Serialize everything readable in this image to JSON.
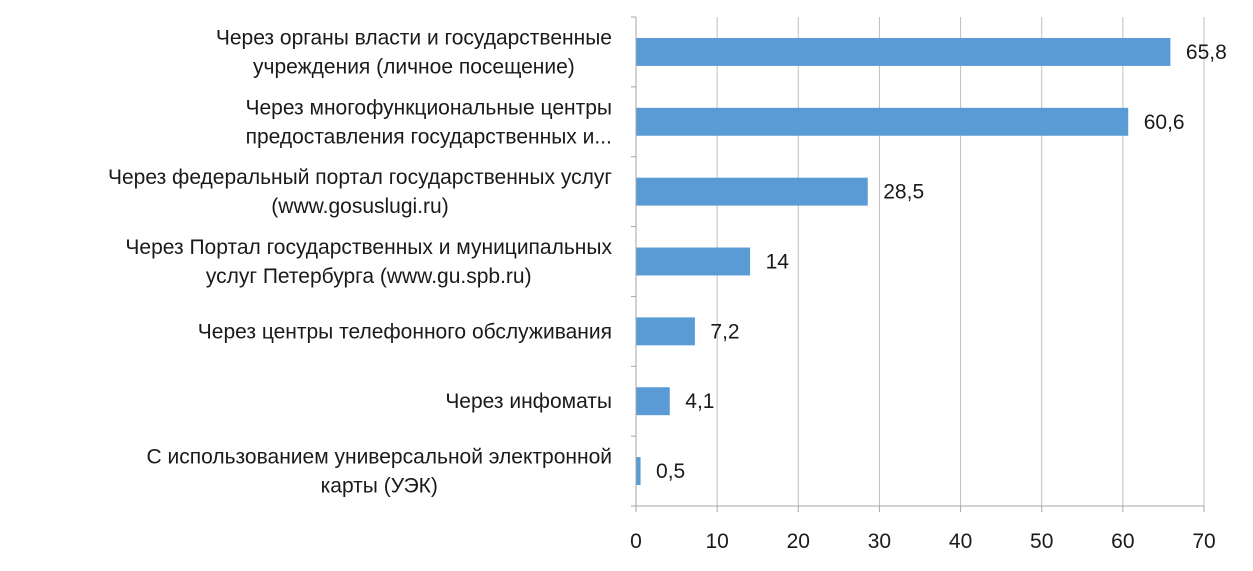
{
  "chart_data": {
    "type": "bar",
    "orientation": "horizontal",
    "categories": [
      [
        "Через органы власти и государственные",
        "учреждения (личное посещение)"
      ],
      [
        "Через многофункциональные центры",
        "предоставления государственных и..."
      ],
      [
        "Через федеральный портал государственных услуг",
        "(www.gosuslugi.ru)"
      ],
      [
        "Через Портал государственных и муниципальных",
        "услуг Петербурга (www.gu.spb.ru)"
      ],
      [
        "Через центры телефонного обслуживания"
      ],
      [
        "Через инфоматы"
      ],
      [
        "С использованием универсальной электронной",
        "карты (УЭК)"
      ]
    ],
    "values": [
      65.8,
      60.6,
      28.5,
      14,
      7.2,
      4.1,
      0.5
    ],
    "value_labels": [
      "65,8",
      "60,6",
      "28,5",
      "14",
      "7,2",
      "4,1",
      "0,5"
    ],
    "xlim": [
      0,
      70
    ],
    "x_ticks": [
      0,
      10,
      20,
      30,
      40,
      50,
      60,
      70
    ],
    "x_tick_labels": [
      "0",
      "10",
      "20",
      "30",
      "40",
      "50",
      "60",
      "70"
    ],
    "grid": true,
    "legend": "none",
    "bar_color": "#5b9bd5",
    "grid_color": "#bfbfbf",
    "axis_color": "#a6a6a6"
  }
}
